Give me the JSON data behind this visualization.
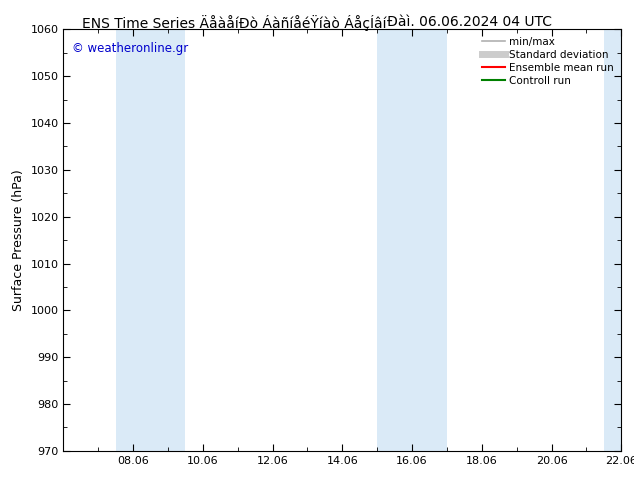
{
  "title_text": "ENS Time Series ÄåàåíÐò ÁàñíåéŸíàò ÁåçÍâí      Đàì. 06.06.2024 04 UTC",
  "ylabel": "Surface Pressure (hPa)",
  "ylim": [
    970,
    1060
  ],
  "yticks": [
    970,
    980,
    990,
    1000,
    1010,
    1020,
    1030,
    1040,
    1050,
    1060
  ],
  "xlim": [
    0,
    16
  ],
  "xtick_positions": [
    2,
    4,
    6,
    8,
    10,
    12,
    14,
    16
  ],
  "xtick_labels": [
    "08.06",
    "10.06",
    "12.06",
    "14.06",
    "16.06",
    "18.06",
    "20.06",
    "22.06"
  ],
  "shaded_bands": [
    {
      "x_start": 1.5,
      "x_end": 3.5,
      "color": "#daeaf7"
    },
    {
      "x_start": 9.0,
      "x_end": 11.0,
      "color": "#daeaf7"
    },
    {
      "x_start": 15.5,
      "x_end": 16.0,
      "color": "#daeaf7"
    }
  ],
  "legend_items": [
    {
      "label": "min/max",
      "color": "#b0b0b0",
      "lw": 1.2
    },
    {
      "label": "Standard deviation",
      "color": "#cccccc",
      "lw": 5
    },
    {
      "label": "Ensemble mean run",
      "color": "#ff0000",
      "lw": 1.5
    },
    {
      "label": "Controll run",
      "color": "#008000",
      "lw": 1.5
    }
  ],
  "watermark": "© weatheronline.gr",
  "watermark_color": "#0000cc",
  "bg_color": "#ffffff",
  "plot_bg_color": "#ffffff",
  "title_fontsize": 10,
  "ylabel_fontsize": 9,
  "tick_fontsize": 8,
  "legend_fontsize": 7.5,
  "watermark_fontsize": 8.5
}
